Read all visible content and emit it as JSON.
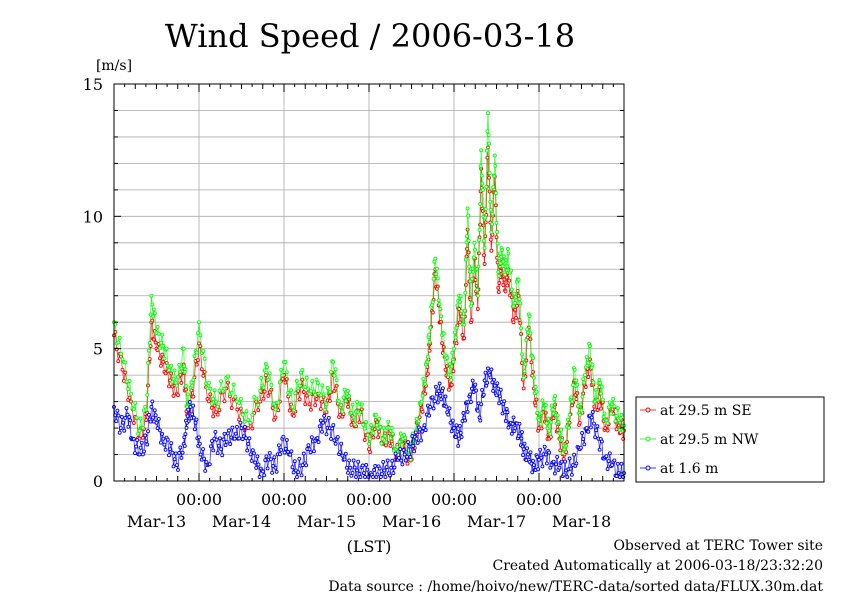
{
  "chart_data": {
    "type": "line",
    "title": "Wind Speed / 2006-03-18",
    "ylabel": "[m/s]",
    "xlabel": "(LST)",
    "ylim": [
      0,
      15
    ],
    "yticks": [
      0,
      5,
      10,
      15
    ],
    "xlim": [
      0,
      6
    ],
    "x_unit": "days since 2006-03-13 00:00",
    "x_ticks": [
      {
        "x": 1,
        "time": "00:00"
      },
      {
        "x": 2,
        "time": "00:00"
      },
      {
        "x": 3,
        "time": "00:00"
      },
      {
        "x": 4,
        "time": "00:00"
      },
      {
        "x": 5,
        "time": "00:00"
      }
    ],
    "day_labels": [
      {
        "x": 0.5,
        "label": "Mar-13"
      },
      {
        "x": 1.5,
        "label": "Mar-14"
      },
      {
        "x": 2.5,
        "label": "Mar-15"
      },
      {
        "x": 3.5,
        "label": "Mar-16"
      },
      {
        "x": 4.5,
        "label": "Mar-17"
      },
      {
        "x": 5.5,
        "label": "Mar-18"
      }
    ],
    "grid": true,
    "legend_position": "right",
    "series": [
      {
        "name": "at 29.5 m SE",
        "color": "#ff0000",
        "points": [
          [
            0.0,
            5.5
          ],
          [
            0.1,
            4.2
          ],
          [
            0.2,
            3.0
          ],
          [
            0.3,
            1.6
          ],
          [
            0.38,
            2.3
          ],
          [
            0.44,
            6.0
          ],
          [
            0.5,
            5.0
          ],
          [
            0.58,
            4.5
          ],
          [
            0.66,
            3.8
          ],
          [
            0.74,
            3.3
          ],
          [
            0.82,
            4.4
          ],
          [
            0.86,
            2.5
          ],
          [
            0.92,
            3.2
          ],
          [
            1.0,
            5.2
          ],
          [
            1.1,
            3.1
          ],
          [
            1.2,
            2.6
          ],
          [
            1.32,
            3.5
          ],
          [
            1.45,
            2.7
          ],
          [
            1.58,
            2.0
          ],
          [
            1.72,
            3.0
          ],
          [
            1.8,
            3.8
          ],
          [
            1.9,
            2.4
          ],
          [
            2.0,
            4.0
          ],
          [
            2.1,
            2.5
          ],
          [
            2.2,
            3.6
          ],
          [
            2.3,
            2.9
          ],
          [
            2.4,
            3.3
          ],
          [
            2.5,
            2.6
          ],
          [
            2.58,
            4.0
          ],
          [
            2.66,
            2.5
          ],
          [
            2.74,
            3.0
          ],
          [
            2.82,
            2.2
          ],
          [
            2.9,
            2.6
          ],
          [
            3.0,
            1.2
          ],
          [
            3.08,
            2.3
          ],
          [
            3.16,
            1.4
          ],
          [
            3.24,
            1.8
          ],
          [
            3.32,
            1.0
          ],
          [
            3.4,
            1.4
          ],
          [
            3.48,
            0.8
          ],
          [
            3.55,
            1.7
          ],
          [
            3.62,
            2.7
          ],
          [
            3.68,
            4.0
          ],
          [
            3.72,
            5.2
          ],
          [
            3.78,
            8.0
          ],
          [
            3.84,
            6.0
          ],
          [
            3.9,
            4.2
          ],
          [
            3.96,
            3.6
          ],
          [
            4.0,
            4.6
          ],
          [
            4.06,
            6.5
          ],
          [
            4.12,
            5.4
          ],
          [
            4.16,
            9.5
          ],
          [
            4.2,
            6.0
          ],
          [
            4.24,
            8.4
          ],
          [
            4.28,
            6.5
          ],
          [
            4.32,
            11.8
          ],
          [
            4.36,
            8.2
          ],
          [
            4.4,
            12.6
          ],
          [
            4.44,
            8.7
          ],
          [
            4.48,
            11.5
          ],
          [
            4.52,
            7.3
          ],
          [
            4.56,
            8.2
          ],
          [
            4.6,
            7.2
          ],
          [
            4.64,
            8.0
          ],
          [
            4.7,
            6.0
          ],
          [
            4.76,
            7.0
          ],
          [
            4.82,
            3.5
          ],
          [
            4.88,
            5.8
          ],
          [
            4.94,
            3.5
          ],
          [
            5.0,
            2.0
          ],
          [
            5.06,
            2.6
          ],
          [
            5.12,
            1.6
          ],
          [
            5.18,
            2.8
          ],
          [
            5.24,
            1.6
          ],
          [
            5.3,
            1.0
          ],
          [
            5.36,
            2.2
          ],
          [
            5.42,
            3.8
          ],
          [
            5.48,
            2.2
          ],
          [
            5.54,
            3.6
          ],
          [
            5.6,
            4.6
          ],
          [
            5.66,
            2.7
          ],
          [
            5.72,
            3.3
          ],
          [
            5.78,
            2.0
          ],
          [
            5.86,
            2.6
          ],
          [
            5.94,
            2.1
          ],
          [
            6.0,
            1.9
          ]
        ]
      },
      {
        "name": "at 29.5 m NW",
        "color": "#00ff00",
        "points": [
          [
            0.0,
            6.0
          ],
          [
            0.1,
            4.6
          ],
          [
            0.2,
            3.3
          ],
          [
            0.3,
            1.9
          ],
          [
            0.38,
            2.7
          ],
          [
            0.44,
            7.0
          ],
          [
            0.5,
            5.6
          ],
          [
            0.58,
            5.1
          ],
          [
            0.66,
            4.3
          ],
          [
            0.74,
            3.6
          ],
          [
            0.82,
            5.0
          ],
          [
            0.86,
            2.8
          ],
          [
            0.92,
            3.6
          ],
          [
            1.0,
            6.0
          ],
          [
            1.1,
            3.5
          ],
          [
            1.2,
            3.0
          ],
          [
            1.32,
            3.9
          ],
          [
            1.45,
            3.0
          ],
          [
            1.58,
            2.3
          ],
          [
            1.72,
            3.4
          ],
          [
            1.8,
            4.3
          ],
          [
            1.9,
            2.7
          ],
          [
            2.0,
            4.5
          ],
          [
            2.1,
            2.8
          ],
          [
            2.2,
            4.1
          ],
          [
            2.3,
            3.3
          ],
          [
            2.4,
            3.7
          ],
          [
            2.5,
            2.9
          ],
          [
            2.58,
            4.5
          ],
          [
            2.66,
            2.8
          ],
          [
            2.74,
            3.3
          ],
          [
            2.82,
            2.4
          ],
          [
            2.9,
            2.9
          ],
          [
            3.0,
            1.4
          ],
          [
            3.08,
            2.5
          ],
          [
            3.16,
            1.6
          ],
          [
            3.24,
            2.0
          ],
          [
            3.32,
            1.2
          ],
          [
            3.4,
            1.6
          ],
          [
            3.48,
            1.0
          ],
          [
            3.55,
            1.9
          ],
          [
            3.62,
            3.0
          ],
          [
            3.68,
            4.5
          ],
          [
            3.72,
            5.8
          ],
          [
            3.78,
            8.4
          ],
          [
            3.84,
            6.5
          ],
          [
            3.9,
            4.6
          ],
          [
            3.96,
            4.0
          ],
          [
            4.0,
            5.0
          ],
          [
            4.06,
            7.0
          ],
          [
            4.12,
            5.9
          ],
          [
            4.16,
            10.3
          ],
          [
            4.2,
            6.6
          ],
          [
            4.24,
            9.0
          ],
          [
            4.28,
            7.0
          ],
          [
            4.32,
            12.5
          ],
          [
            4.36,
            8.8
          ],
          [
            4.4,
            13.9
          ],
          [
            4.44,
            9.4
          ],
          [
            4.48,
            12.3
          ],
          [
            4.52,
            7.9
          ],
          [
            4.56,
            8.8
          ],
          [
            4.6,
            7.8
          ],
          [
            4.64,
            8.6
          ],
          [
            4.7,
            6.6
          ],
          [
            4.76,
            7.6
          ],
          [
            4.82,
            3.9
          ],
          [
            4.88,
            6.3
          ],
          [
            4.94,
            3.9
          ],
          [
            5.0,
            2.3
          ],
          [
            5.06,
            2.9
          ],
          [
            5.12,
            1.9
          ],
          [
            5.18,
            3.1
          ],
          [
            5.24,
            1.8
          ],
          [
            5.3,
            1.2
          ],
          [
            5.36,
            2.5
          ],
          [
            5.42,
            4.2
          ],
          [
            5.48,
            2.5
          ],
          [
            5.54,
            4.0
          ],
          [
            5.6,
            5.1
          ],
          [
            5.66,
            3.0
          ],
          [
            5.72,
            3.7
          ],
          [
            5.78,
            2.3
          ],
          [
            5.86,
            2.9
          ],
          [
            5.94,
            2.3
          ],
          [
            6.0,
            2.1
          ]
        ]
      },
      {
        "name": "at 1.6 m",
        "color": "#0000ff",
        "points": [
          [
            0.0,
            2.8
          ],
          [
            0.08,
            2.0
          ],
          [
            0.16,
            2.5
          ],
          [
            0.22,
            1.6
          ],
          [
            0.3,
            1.0
          ],
          [
            0.38,
            1.5
          ],
          [
            0.44,
            2.8
          ],
          [
            0.5,
            2.2
          ],
          [
            0.58,
            1.6
          ],
          [
            0.66,
            1.2
          ],
          [
            0.74,
            0.6
          ],
          [
            0.82,
            1.4
          ],
          [
            0.86,
            2.2
          ],
          [
            0.9,
            2.8
          ],
          [
            0.96,
            2.2
          ],
          [
            1.02,
            1.0
          ],
          [
            1.1,
            0.6
          ],
          [
            1.18,
            1.6
          ],
          [
            1.26,
            1.2
          ],
          [
            1.34,
            1.8
          ],
          [
            1.42,
            1.6
          ],
          [
            1.5,
            2.0
          ],
          [
            1.58,
            1.4
          ],
          [
            1.66,
            0.7
          ],
          [
            1.74,
            0.4
          ],
          [
            1.82,
            0.8
          ],
          [
            1.9,
            0.5
          ],
          [
            1.98,
            1.6
          ],
          [
            2.06,
            1.0
          ],
          [
            2.14,
            0.4
          ],
          [
            2.22,
            0.6
          ],
          [
            2.3,
            1.2
          ],
          [
            2.38,
            1.6
          ],
          [
            2.46,
            2.2
          ],
          [
            2.54,
            2.0
          ],
          [
            2.62,
            1.6
          ],
          [
            2.7,
            0.8
          ],
          [
            2.78,
            0.5
          ],
          [
            2.86,
            0.4
          ],
          [
            2.94,
            0.3
          ],
          [
            3.02,
            0.3
          ],
          [
            3.1,
            0.25
          ],
          [
            3.18,
            0.4
          ],
          [
            3.26,
            0.5
          ],
          [
            3.34,
            0.8
          ],
          [
            3.42,
            1.0
          ],
          [
            3.5,
            1.3
          ],
          [
            3.56,
            1.6
          ],
          [
            3.64,
            2.0
          ],
          [
            3.72,
            2.8
          ],
          [
            3.8,
            3.3
          ],
          [
            3.86,
            3.4
          ],
          [
            3.92,
            2.6
          ],
          [
            4.0,
            2.0
          ],
          [
            4.06,
            1.6
          ],
          [
            4.12,
            2.4
          ],
          [
            4.18,
            3.2
          ],
          [
            4.24,
            3.6
          ],
          [
            4.3,
            2.4
          ],
          [
            4.36,
            3.8
          ],
          [
            4.42,
            4.0
          ],
          [
            4.48,
            3.6
          ],
          [
            4.54,
            3.2
          ],
          [
            4.6,
            2.6
          ],
          [
            4.66,
            2.2
          ],
          [
            4.72,
            2.0
          ],
          [
            4.78,
            1.8
          ],
          [
            4.82,
            1.2
          ],
          [
            4.88,
            0.8
          ],
          [
            4.94,
            0.6
          ],
          [
            5.0,
            0.8
          ],
          [
            5.08,
            1.0
          ],
          [
            5.16,
            0.7
          ],
          [
            5.24,
            0.5
          ],
          [
            5.32,
            0.4
          ],
          [
            5.4,
            0.6
          ],
          [
            5.48,
            1.2
          ],
          [
            5.56,
            2.0
          ],
          [
            5.62,
            2.4
          ],
          [
            5.7,
            1.6
          ],
          [
            5.78,
            0.9
          ],
          [
            5.86,
            0.6
          ],
          [
            5.94,
            0.3
          ],
          [
            6.0,
            0.3
          ]
        ]
      }
    ]
  },
  "footer": {
    "line1": "Observed at TERC Tower site",
    "line2": "Created Automatically at 2006-03-18/23:32:20",
    "line3": "Data source : /home/hoivo/new/TERC-data/sorted  data/FLUX.30m.dat"
  }
}
